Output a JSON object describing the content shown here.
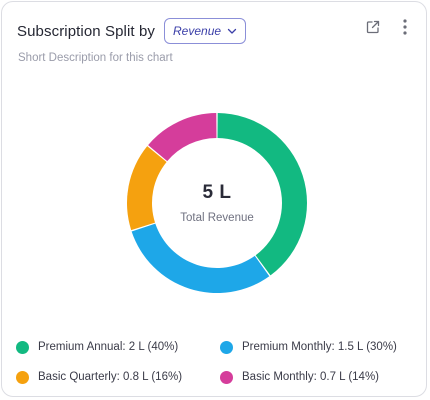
{
  "header": {
    "title": "Subscription Split by",
    "selector_value": "Revenue",
    "selector_icon": "chevron-down-icon",
    "export_icon": "external-link-icon",
    "menu_icon": "more-vertical-icon"
  },
  "subtitle": "Short Description for this chart",
  "center": {
    "value": "5 L",
    "label": "Total Revenue"
  },
  "colors": {
    "premium_annual": "#12b981",
    "premium_monthly": "#1ea7e8",
    "basic_quarterly": "#f5a10f",
    "basic_monthly": "#d53d9b"
  },
  "chart_data": {
    "type": "pie",
    "style": "donut",
    "slices": [
      {
        "label": "Premium Annual",
        "value": 2,
        "percent": 40,
        "color": "#12b981"
      },
      {
        "label": "Premium Monthly",
        "value": 1.5,
        "percent": 30,
        "color": "#1ea7e8"
      },
      {
        "label": "Basic Quarterly",
        "value": 0.8,
        "percent": 16,
        "color": "#f5a10f"
      },
      {
        "label": "Basic Monthly",
        "value": 0.7,
        "percent": 14,
        "color": "#d53d9b"
      }
    ],
    "unit": "L",
    "center_value": "5 L",
    "center_label": "Total Revenue",
    "legend_position": "bottom"
  },
  "legend": [
    {
      "text": "Premium Annual: 2 L (40%)",
      "color": "#12b981"
    },
    {
      "text": "Premium Monthly: 1.5 L (30%)",
      "color": "#1ea7e8"
    },
    {
      "text": "Basic Quarterly: 0.8 L (16%)",
      "color": "#f5a10f"
    },
    {
      "text": "Basic Monthly: 0.7 L (14%)",
      "color": "#d53d9b"
    }
  ]
}
